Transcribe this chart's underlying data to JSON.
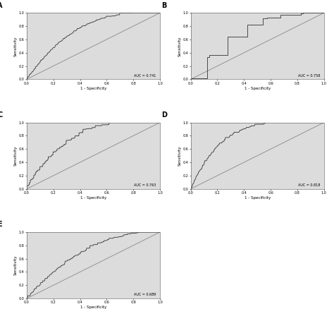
{
  "panels": [
    {
      "label": "A",
      "auc": 0.741,
      "auc_text": "AUC = 0.741"
    },
    {
      "label": "B",
      "auc": 0.758,
      "auc_text": "AUC = 0.758"
    },
    {
      "label": "C",
      "auc": 0.763,
      "auc_text": "AUC = 0.763"
    },
    {
      "label": "D",
      "auc": 0.818,
      "auc_text": "AUC = 0.818"
    },
    {
      "label": "E",
      "auc": 0.689,
      "auc_text": "AUC = 0.689"
    }
  ],
  "bg_color": "#dcdcdc",
  "curve_color": "#333333",
  "diag_color": "#888888",
  "xlabel": "1 - Specificity",
  "ylabel": "Sensitivity",
  "tick_vals": [
    0.0,
    0.2,
    0.4,
    0.6,
    0.8,
    1.0
  ],
  "tick_labels": [
    "0.0",
    "0.2",
    "0.4",
    "0.6",
    "0.8",
    "1.0"
  ],
  "fig_width": 4.74,
  "fig_height": 4.55,
  "fig_dpi": 100
}
